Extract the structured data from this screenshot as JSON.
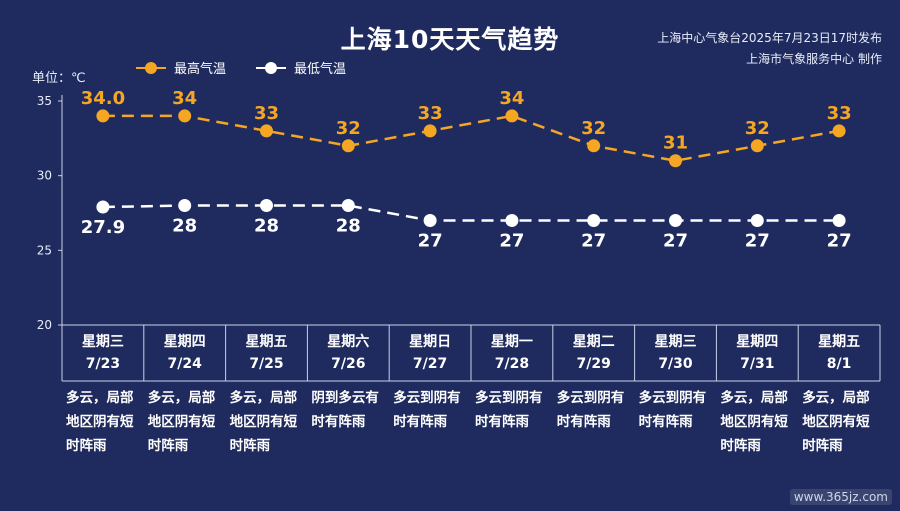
{
  "header": {
    "title": "上海10天天气趋势",
    "source_line1": "上海中心气象台2025年7月23日17时发布",
    "source_line2": "上海市气象服务中心 制作",
    "unit": "单位：℃"
  },
  "watermark": "www.365jz.com",
  "colors": {
    "high": "#f5a623",
    "low": "#ffffff",
    "background": "#1f2b5e"
  },
  "chart_data": {
    "type": "line",
    "ylim": [
      20,
      35
    ],
    "yticks": [
      "35",
      "30",
      "25",
      "20"
    ],
    "grid": false,
    "legend_placement": "top-left",
    "categories": [
      "7/23",
      "7/24",
      "7/25",
      "7/26",
      "7/27",
      "7/28",
      "7/29",
      "7/30",
      "7/31",
      "8/1"
    ],
    "series": [
      {
        "name": "最高气温",
        "values": [
          34.0,
          34,
          33,
          32,
          33,
          34,
          32,
          31,
          32,
          33
        ],
        "labels": [
          "34.0",
          "34",
          "33",
          "32",
          "33",
          "34",
          "32",
          "31",
          "32",
          "33"
        ]
      },
      {
        "name": "最低气温",
        "values": [
          27.9,
          28,
          28,
          28,
          27,
          27,
          27,
          27,
          27,
          27
        ],
        "labels": [
          "27.9",
          "28",
          "28",
          "28",
          "27",
          "27",
          "27",
          "27",
          "27",
          "27"
        ]
      }
    ]
  },
  "days": [
    {
      "weekday": "星期三",
      "date": "7/23",
      "weather": "多云，局部地区阴有短时阵雨"
    },
    {
      "weekday": "星期四",
      "date": "7/24",
      "weather": "多云，局部地区阴有短时阵雨"
    },
    {
      "weekday": "星期五",
      "date": "7/25",
      "weather": "多云，局部地区阴有短时阵雨"
    },
    {
      "weekday": "星期六",
      "date": "7/26",
      "weather": "阴到多云有时有阵雨"
    },
    {
      "weekday": "星期日",
      "date": "7/27",
      "weather": "多云到阴有时有阵雨"
    },
    {
      "weekday": "星期一",
      "date": "7/28",
      "weather": "多云到阴有时有阵雨"
    },
    {
      "weekday": "星期二",
      "date": "7/29",
      "weather": "多云到阴有时有阵雨"
    },
    {
      "weekday": "星期三",
      "date": "7/30",
      "weather": "多云到阴有时有阵雨"
    },
    {
      "weekday": "星期四",
      "date": "7/31",
      "weather": "多云，局部地区阴有短时阵雨"
    },
    {
      "weekday": "星期五",
      "date": "8/1",
      "weather": "多云，局部地区阴有短时阵雨"
    }
  ]
}
